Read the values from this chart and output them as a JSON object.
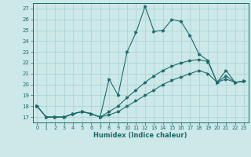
{
  "title": "",
  "xlabel": "Humidex (Indice chaleur)",
  "ylabel": "",
  "background_color": "#cce8e8",
  "grid_color": "#aed4d4",
  "line_color": "#1e6b6b",
  "xlim": [
    -0.5,
    23.5
  ],
  "ylim": [
    16.5,
    27.5
  ],
  "xticks": [
    0,
    1,
    2,
    3,
    4,
    5,
    6,
    7,
    8,
    9,
    10,
    11,
    12,
    13,
    14,
    15,
    16,
    17,
    18,
    19,
    20,
    21,
    22,
    23
  ],
  "yticks": [
    17,
    18,
    19,
    20,
    21,
    22,
    23,
    24,
    25,
    26,
    27
  ],
  "line1_x": [
    0,
    1,
    2,
    3,
    4,
    5,
    6,
    7,
    8,
    9,
    10,
    11,
    12,
    13,
    14,
    15,
    16,
    17,
    18,
    19,
    20,
    21,
    22,
    23
  ],
  "line1_y": [
    18.0,
    17.0,
    17.0,
    17.0,
    17.3,
    17.5,
    17.3,
    17.0,
    20.5,
    19.0,
    23.0,
    24.8,
    27.2,
    24.9,
    25.0,
    26.0,
    25.8,
    24.5,
    22.8,
    22.2,
    20.2,
    20.8,
    20.2,
    20.3
  ],
  "line2_x": [
    0,
    1,
    2,
    3,
    4,
    5,
    6,
    7,
    8,
    9,
    10,
    11,
    12,
    13,
    14,
    15,
    16,
    17,
    18,
    19,
    20,
    21,
    22,
    23
  ],
  "line2_y": [
    18.0,
    17.0,
    17.0,
    17.0,
    17.3,
    17.5,
    17.3,
    17.0,
    17.5,
    18.0,
    18.8,
    19.5,
    20.2,
    20.8,
    21.3,
    21.7,
    22.0,
    22.2,
    22.3,
    22.1,
    20.2,
    21.3,
    20.2,
    20.3
  ],
  "line3_x": [
    0,
    1,
    2,
    3,
    4,
    5,
    6,
    7,
    8,
    9,
    10,
    11,
    12,
    13,
    14,
    15,
    16,
    17,
    18,
    19,
    20,
    21,
    22,
    23
  ],
  "line3_y": [
    18.0,
    17.0,
    17.0,
    17.0,
    17.3,
    17.5,
    17.3,
    17.0,
    17.2,
    17.5,
    18.0,
    18.5,
    19.0,
    19.5,
    20.0,
    20.4,
    20.7,
    21.0,
    21.3,
    21.0,
    20.2,
    20.5,
    20.2,
    20.3
  ]
}
